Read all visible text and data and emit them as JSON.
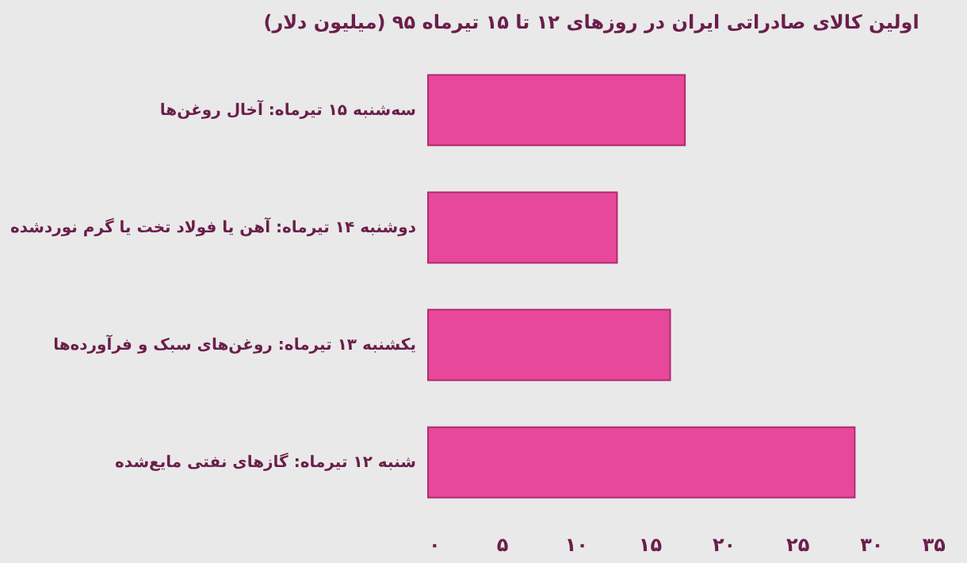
{
  "chart_data": {
    "type": "bar",
    "orientation": "horizontal",
    "title": "اولین کالای صادراتی ایران در روزهای ۱۲ تا ۱۵ تیرماه ۹۵ (میلیون دلار)",
    "categories": [
      "سه‌شنبه ۱۵ تیرماه: آخال روغن‌ها",
      "دوشنبه ۱۴ تیرماه: آهن یا فولاد تخت یا گرم نوردشده",
      "یکشنبه ۱۳ تیرماه: روغن‌های سبک و فرآورده‌ها",
      "شنبه ۱۲ تیرماه:  گازهای نفتی مایع‌شده"
    ],
    "values": [
      17.4,
      12.8,
      16.4,
      28.9
    ],
    "color": "#e8489a",
    "xlim": [
      0,
      35
    ],
    "xticks": [
      {
        "value": 0,
        "label": "۰"
      },
      {
        "value": 5,
        "label": "۵"
      },
      {
        "value": 10,
        "label": "۱۰"
      },
      {
        "value": 15,
        "label": "۱۵"
      },
      {
        "value": 20,
        "label": "۲۰"
      },
      {
        "value": 25,
        "label": "۲۵"
      },
      {
        "value": 30,
        "label": "۳۰"
      },
      {
        "value": 35,
        "label": "۳۵"
      }
    ],
    "grid": false
  }
}
